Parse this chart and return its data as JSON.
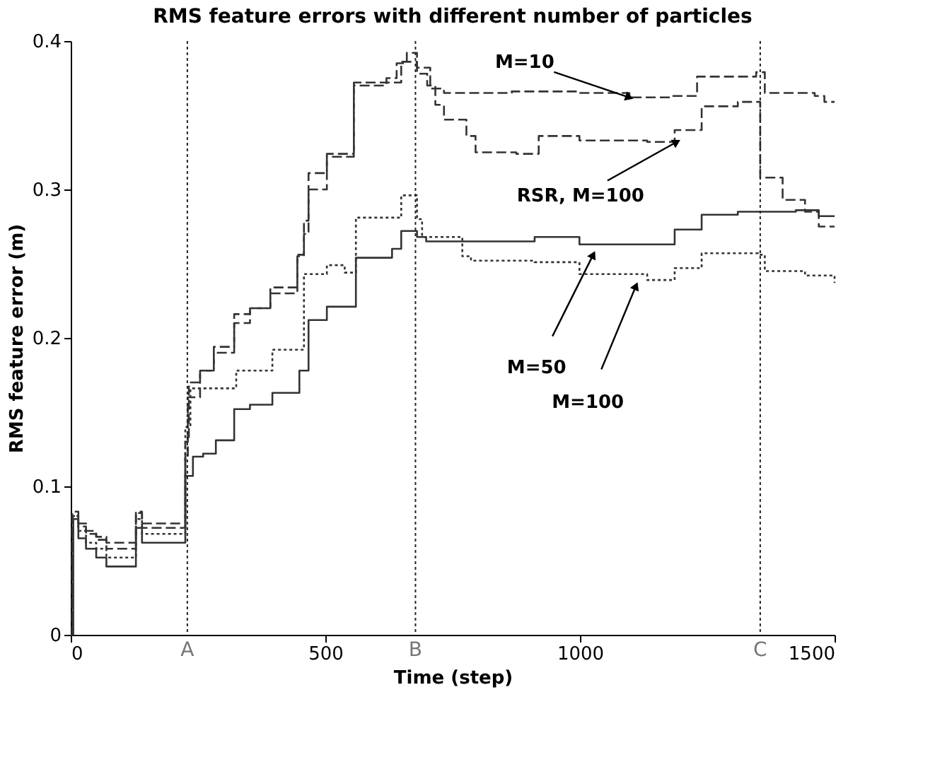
{
  "chart_data": {
    "type": "step",
    "title": "RMS feature errors with different number of particles",
    "xlabel": "Time (step)",
    "ylabel": "RMS feature error (m)",
    "xlim": [
      0,
      1500
    ],
    "ylim": [
      0,
      0.4
    ],
    "xticks": [
      0,
      500,
      1000,
      1500
    ],
    "yticks": [
      0,
      0.1,
      0.2,
      0.3,
      0.4
    ],
    "series": [
      {
        "color": "#333333",
        "line_style": "dashed",
        "x": [
          0,
          3,
          15,
          30,
          50,
          70,
          128,
          140,
          225,
          230,
          254,
          281,
          321,
          352,
          392,
          445,
          458,
          467,
          503,
          556,
          649,
          680,
          706,
          733,
          866,
          999,
          1097,
          1177,
          1230,
          1346,
          1363,
          1461,
          1480,
          1500
        ],
        "values": [
          0,
          0.083,
          0.075,
          0.07,
          0.066,
          0.062,
          0.083,
          0.075,
          0.12,
          0.16,
          0.178,
          0.194,
          0.216,
          0.22,
          0.234,
          0.256,
          0.279,
          0.311,
          0.324,
          0.372,
          0.386,
          0.382,
          0.368,
          0.365,
          0.366,
          0.365,
          0.362,
          0.363,
          0.376,
          0.379,
          0.365,
          0.363,
          0.359,
          0.359
        ]
      },
      {
        "color": "#333333",
        "line_style": "dashed",
        "x": [
          0,
          3,
          15,
          30,
          50,
          70,
          128,
          140,
          225,
          232,
          254,
          281,
          321,
          352,
          392,
          445,
          458,
          467,
          503,
          556,
          620,
          640,
          660,
          680,
          700,
          716,
          733,
          777,
          795,
          875,
          919,
          999,
          1132,
          1186,
          1239,
          1310,
          1354,
          1398,
          1442,
          1469,
          1500
        ],
        "values": [
          0,
          0.08,
          0.073,
          0.068,
          0.064,
          0.058,
          0.082,
          0.072,
          0.13,
          0.17,
          0.178,
          0.19,
          0.21,
          0.22,
          0.23,
          0.255,
          0.27,
          0.3,
          0.322,
          0.37,
          0.375,
          0.385,
          0.392,
          0.378,
          0.37,
          0.357,
          0.347,
          0.336,
          0.325,
          0.324,
          0.336,
          0.333,
          0.332,
          0.34,
          0.356,
          0.359,
          0.308,
          0.293,
          0.285,
          0.275,
          0.275
        ]
      },
      {
        "color": "#333333",
        "line_style": "solid",
        "x": [
          0,
          5,
          15,
          30,
          50,
          70,
          128,
          140,
          225,
          240,
          260,
          285,
          321,
          352,
          396,
          449,
          467,
          503,
          560,
          631,
          649,
          680,
          698,
          778,
          911,
          999,
          1150,
          1186,
          1239,
          1310,
          1424,
          1469,
          1500
        ],
        "values": [
          0,
          0.078,
          0.065,
          0.058,
          0.052,
          0.046,
          0.072,
          0.062,
          0.107,
          0.12,
          0.122,
          0.131,
          0.152,
          0.155,
          0.163,
          0.178,
          0.212,
          0.221,
          0.254,
          0.26,
          0.272,
          0.268,
          0.265,
          0.265,
          0.268,
          0.263,
          0.263,
          0.273,
          0.283,
          0.285,
          0.286,
          0.282,
          0.282
        ]
      },
      {
        "color": "#333333",
        "line_style": "dotted",
        "x": [
          0,
          4,
          15,
          30,
          50,
          70,
          128,
          140,
          225,
          235,
          325,
          396,
          458,
          503,
          538,
          560,
          649,
          680,
          690,
          769,
          786,
          911,
          999,
          1132,
          1186,
          1239,
          1350,
          1363,
          1442,
          1500
        ],
        "values": [
          0,
          0.08,
          0.07,
          0.062,
          0.058,
          0.052,
          0.078,
          0.068,
          0.14,
          0.166,
          0.178,
          0.192,
          0.243,
          0.249,
          0.244,
          0.281,
          0.296,
          0.28,
          0.268,
          0.255,
          0.252,
          0.251,
          0.243,
          0.239,
          0.247,
          0.257,
          0.256,
          0.245,
          0.242,
          0.237
        ]
      }
    ],
    "ref_lines": [
      {
        "axis": "x",
        "value": 229,
        "label": "A",
        "color": "#222222",
        "line_style": "dotted"
      },
      {
        "axis": "x",
        "value": 677,
        "label": "B",
        "color": "#222222",
        "line_style": "dotted"
      },
      {
        "axis": "x",
        "value": 1354,
        "label": "C",
        "color": "#222222",
        "line_style": "dotted"
      }
    ],
    "annotations": [
      {
        "text": "M=10",
        "x": 1097,
        "y": 0.362
      },
      {
        "text": "RSR, M=100",
        "x": 1190,
        "y": 0.332
      },
      {
        "text": "M=50",
        "x": 1026,
        "y": 0.256
      },
      {
        "text": "M=100",
        "x": 1110,
        "y": 0.235
      }
    ]
  }
}
